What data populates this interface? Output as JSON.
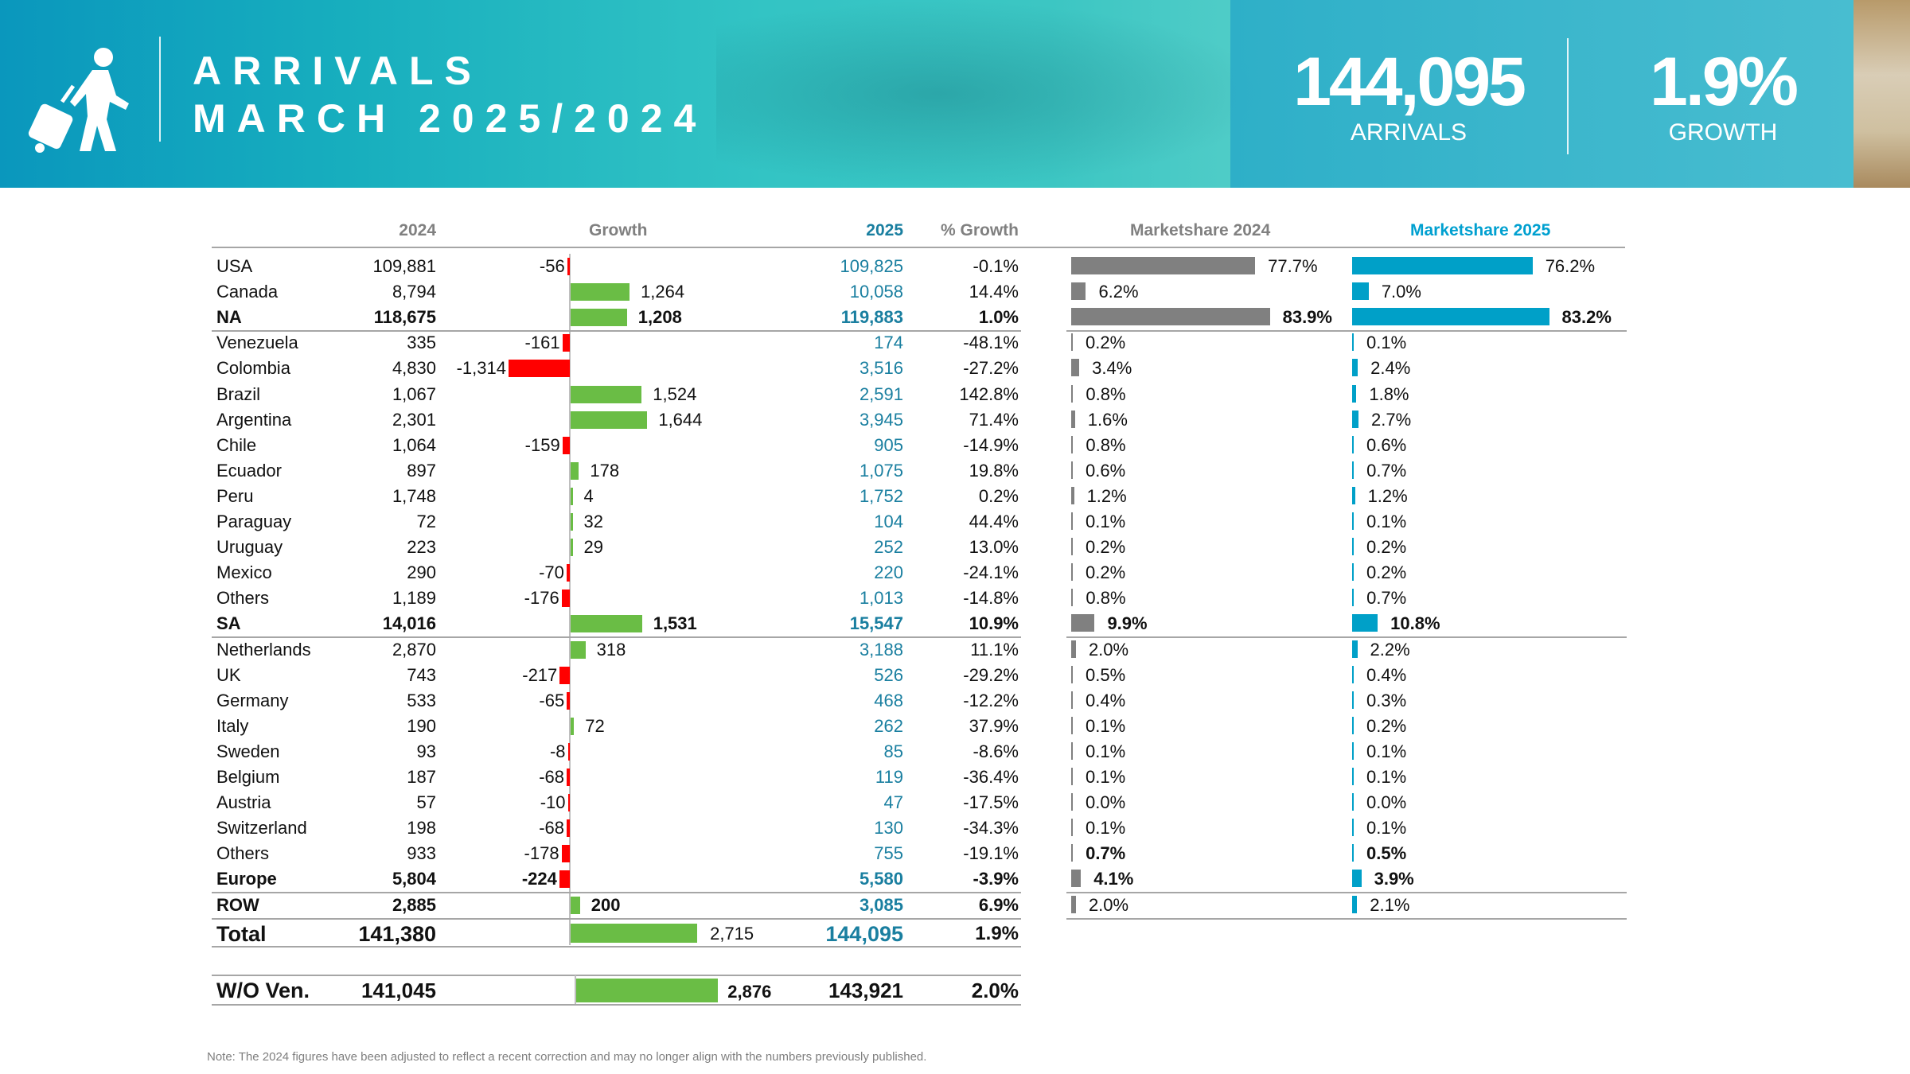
{
  "header": {
    "title_line1": "ARRIVALS",
    "title_line2": "MARCH 2025/2024",
    "kpi_arrivals_value": "144,095",
    "kpi_arrivals_label": "ARRIVALS",
    "kpi_growth_value": "1.9%",
    "kpi_growth_label": "GROWTH",
    "icon": "traveler-with-suitcase-icon"
  },
  "columns": {
    "y2024": "2024",
    "growth": "Growth",
    "y2025": "2025",
    "pct_growth": "% Growth",
    "ms2024": "Marketshare 2024",
    "ms2025": "Marketshare 2025"
  },
  "colors": {
    "positive": "#6abd45",
    "negative": "#ff0000",
    "ms2024": "#808080",
    "ms2025": "#00a0c8",
    "value2025": "#1a7fa0"
  },
  "rows": [
    {
      "name": "USA",
      "v2024": "109,881",
      "growth": "-56",
      "v2025": "109,825",
      "pct": "-0.1%",
      "ms2024": "77.7%",
      "ms2025": "76.2%"
    },
    {
      "name": "Canada",
      "v2024": "8,794",
      "growth": "1,264",
      "v2025": "10,058",
      "pct": "14.4%",
      "ms2024": "6.2%",
      "ms2025": "7.0%"
    },
    {
      "name": "NA",
      "v2024": "118,675",
      "growth": "1,208",
      "v2025": "119,883",
      "pct": "1.0%",
      "ms2024": "83.9%",
      "ms2025": "83.2%",
      "bold": true,
      "sep": true
    },
    {
      "name": "Venezuela",
      "v2024": "335",
      "growth": "-161",
      "v2025": "174",
      "pct": "-48.1%",
      "ms2024": "0.2%",
      "ms2025": "0.1%"
    },
    {
      "name": "Colombia",
      "v2024": "4,830",
      "growth": "-1,314",
      "v2025": "3,516",
      "pct": "-27.2%",
      "ms2024": "3.4%",
      "ms2025": "2.4%"
    },
    {
      "name": "Brazil",
      "v2024": "1,067",
      "growth": "1,524",
      "v2025": "2,591",
      "pct": "142.8%",
      "ms2024": "0.8%",
      "ms2025": "1.8%"
    },
    {
      "name": "Argentina",
      "v2024": "2,301",
      "growth": "1,644",
      "v2025": "3,945",
      "pct": "71.4%",
      "ms2024": "1.6%",
      "ms2025": "2.7%"
    },
    {
      "name": "Chile",
      "v2024": "1,064",
      "growth": "-159",
      "v2025": "905",
      "pct": "-14.9%",
      "ms2024": "0.8%",
      "ms2025": "0.6%"
    },
    {
      "name": "Ecuador",
      "v2024": "897",
      "growth": "178",
      "v2025": "1,075",
      "pct": "19.8%",
      "ms2024": "0.6%",
      "ms2025": "0.7%"
    },
    {
      "name": "Peru",
      "v2024": "1,748",
      "growth": "4",
      "v2025": "1,752",
      "pct": "0.2%",
      "ms2024": "1.2%",
      "ms2025": "1.2%"
    },
    {
      "name": "Paraguay",
      "v2024": "72",
      "growth": "32",
      "v2025": "104",
      "pct": "44.4%",
      "ms2024": "0.1%",
      "ms2025": "0.1%"
    },
    {
      "name": "Uruguay",
      "v2024": "223",
      "growth": "29",
      "v2025": "252",
      "pct": "13.0%",
      "ms2024": "0.2%",
      "ms2025": "0.2%"
    },
    {
      "name": "Mexico",
      "v2024": "290",
      "growth": "-70",
      "v2025": "220",
      "pct": "-24.1%",
      "ms2024": "0.2%",
      "ms2025": "0.2%"
    },
    {
      "name": "Others",
      "v2024": "1,189",
      "growth": "-176",
      "v2025": "1,013",
      "pct": "-14.8%",
      "ms2024": "0.8%",
      "ms2025": "0.7%"
    },
    {
      "name": "SA",
      "v2024": "14,016",
      "growth": "1,531",
      "v2025": "15,547",
      "pct": "10.9%",
      "ms2024": "9.9%",
      "ms2025": "10.8%",
      "bold": true,
      "sep": true
    },
    {
      "name": "Netherlands",
      "v2024": "2,870",
      "growth": "318",
      "v2025": "3,188",
      "pct": "11.1%",
      "ms2024": "2.0%",
      "ms2025": "2.2%"
    },
    {
      "name": "UK",
      "v2024": "743",
      "growth": "-217",
      "v2025": "526",
      "pct": "-29.2%",
      "ms2024": "0.5%",
      "ms2025": "0.4%"
    },
    {
      "name": "Germany",
      "v2024": "533",
      "growth": "-65",
      "v2025": "468",
      "pct": "-12.2%",
      "ms2024": "0.4%",
      "ms2025": "0.3%"
    },
    {
      "name": "Italy",
      "v2024": "190",
      "growth": "72",
      "v2025": "262",
      "pct": "37.9%",
      "ms2024": "0.1%",
      "ms2025": "0.2%"
    },
    {
      "name": "Sweden",
      "v2024": "93",
      "growth": "-8",
      "v2025": "85",
      "pct": "-8.6%",
      "ms2024": "0.1%",
      "ms2025": "0.1%"
    },
    {
      "name": "Belgium",
      "v2024": "187",
      "growth": "-68",
      "v2025": "119",
      "pct": "-36.4%",
      "ms2024": "0.1%",
      "ms2025": "0.1%"
    },
    {
      "name": "Austria",
      "v2024": "57",
      "growth": "-10",
      "v2025": "47",
      "pct": "-17.5%",
      "ms2024": "0.0%",
      "ms2025": "0.0%"
    },
    {
      "name": "Switzerland",
      "v2024": "198",
      "growth": "-68",
      "v2025": "130",
      "pct": "-34.3%",
      "ms2024": "0.1%",
      "ms2025": "0.1%"
    },
    {
      "name": "Others",
      "v2024": "933",
      "growth": "-178",
      "v2025": "755",
      "pct": "-19.1%",
      "ms2024": "0.7%",
      "ms2025": "0.5%",
      "msbold": true
    },
    {
      "name": "Europe",
      "v2024": "5,804",
      "growth": "-224",
      "v2025": "5,580",
      "pct": "-3.9%",
      "ms2024": "4.1%",
      "ms2025": "3.9%",
      "bold": true,
      "sep": true
    },
    {
      "name": "ROW",
      "v2024": "2,885",
      "growth": "200",
      "v2025": "3,085",
      "pct": "6.9%",
      "ms2024": "2.0%",
      "ms2025": "2.1%",
      "bold": true,
      "sep": true,
      "msplain": true
    }
  ],
  "total": {
    "name": "Total",
    "v2024": "141,380",
    "growth": "2,715",
    "v2025": "144,095",
    "pct": "1.9%"
  },
  "wo_ven": {
    "name": "W/O Ven.",
    "v2024": "141,045",
    "growth": "2,876",
    "v2025": "143,921",
    "pct": "2.0%"
  },
  "note": "Note: The 2024 figures have been adjusted to reflect a recent correction and may no longer align with the numbers previously published."
}
